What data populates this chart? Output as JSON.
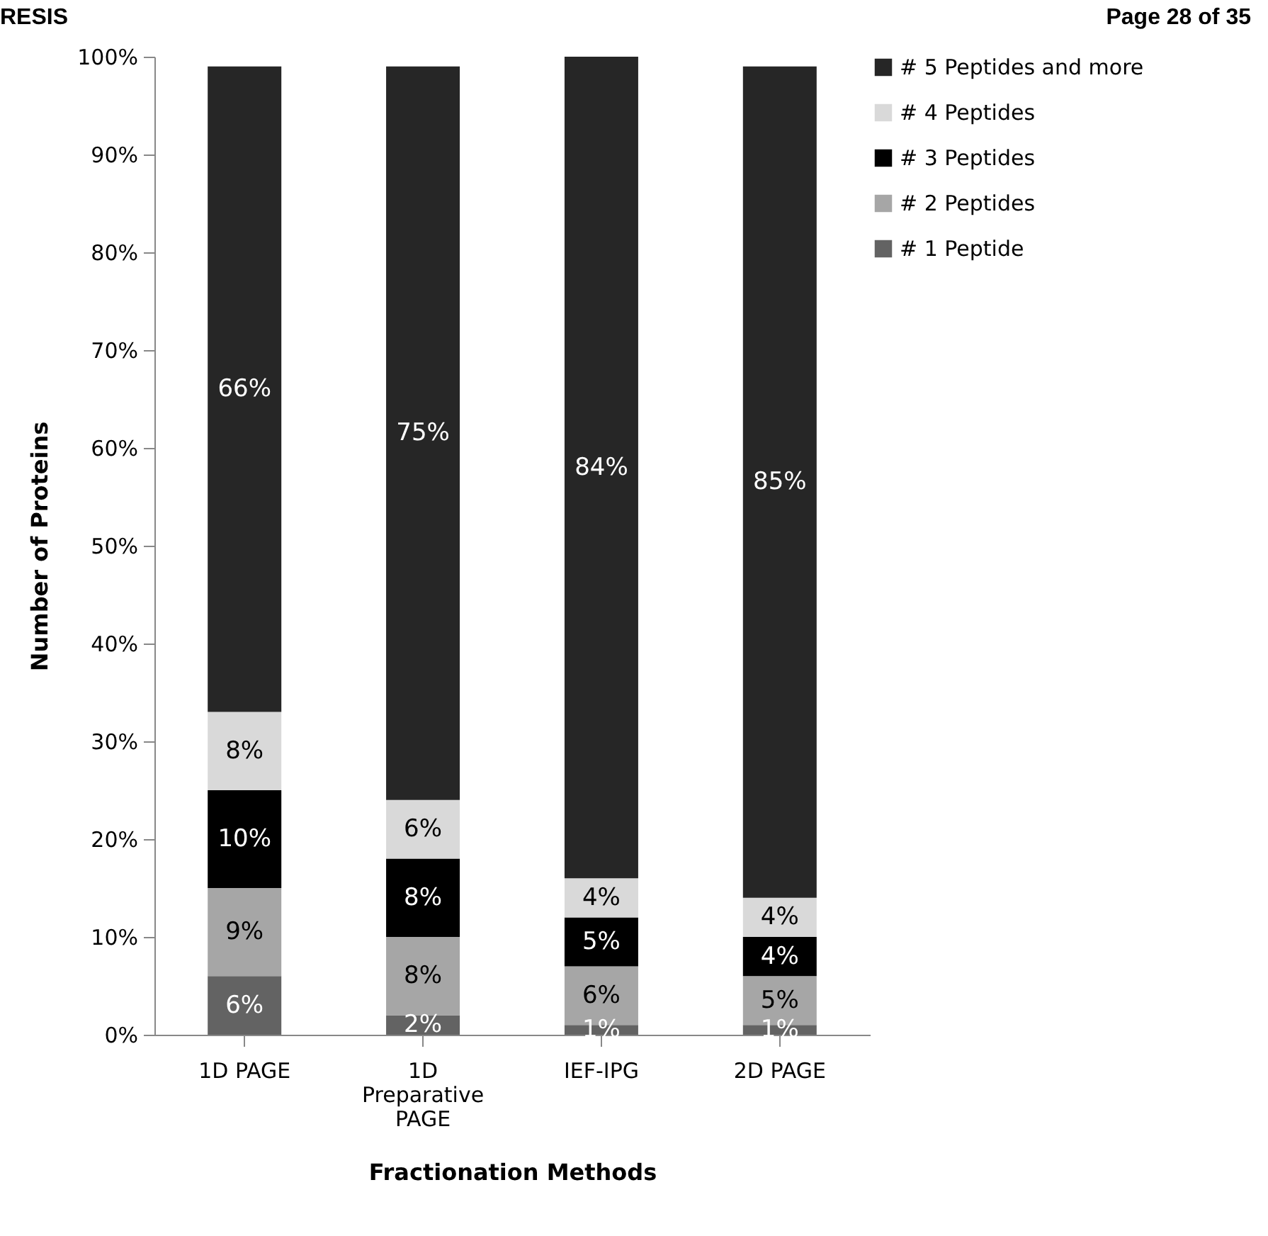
{
  "chart_data": {
    "type": "bar",
    "stacked": true,
    "xlabel": "Fractionation Methods",
    "ylabel": "Number of Proteins",
    "annotations": [
      "RESIS",
      "Page 28 of 35"
    ],
    "categories": [
      "1D PAGE",
      "1D Preparative PAGE",
      "IEF-IPG",
      "2D PAGE"
    ],
    "ylim": [
      0,
      100
    ],
    "yticks": [
      {
        "value": 0,
        "label": "0%"
      },
      {
        "value": 10,
        "label": "10%"
      },
      {
        "value": 20,
        "label": "20%"
      },
      {
        "value": 30,
        "label": "30%"
      },
      {
        "value": 40,
        "label": "40%"
      },
      {
        "value": 50,
        "label": "50%"
      },
      {
        "value": 60,
        "label": "60%"
      },
      {
        "value": 70,
        "label": "70%"
      },
      {
        "value": 80,
        "label": "80%"
      },
      {
        "value": 90,
        "label": "90%"
      },
      {
        "value": 100,
        "label": "100%"
      }
    ],
    "grid": false,
    "legend": "right",
    "series": [
      {
        "name": "# 1 Peptide",
        "color": "#636363",
        "values": [
          6,
          2,
          1,
          1
        ],
        "value_labels": [
          "6%",
          "2%",
          "1%",
          "1%"
        ]
      },
      {
        "name": "# 2 Peptides",
        "color": "#a6a6a6",
        "values": [
          9,
          8,
          6,
          5
        ],
        "value_labels": [
          "9%",
          "8%",
          "6%",
          "5%"
        ]
      },
      {
        "name": "# 3 Peptides",
        "color": "#000000",
        "values": [
          10,
          8,
          5,
          4
        ],
        "value_labels": [
          "10%",
          "8%",
          "5%",
          "4%"
        ]
      },
      {
        "name": "# 4 Peptides",
        "color": "#d9d9d9",
        "values": [
          8,
          6,
          4,
          4
        ],
        "value_labels": [
          "8%",
          "6%",
          "4%",
          "4%"
        ]
      },
      {
        "name": "# 5 Peptides and more",
        "color": "#262626",
        "values": [
          66,
          75,
          84,
          85
        ],
        "value_labels": [
          "66%",
          "75%",
          "84%",
          "85%"
        ]
      }
    ]
  }
}
